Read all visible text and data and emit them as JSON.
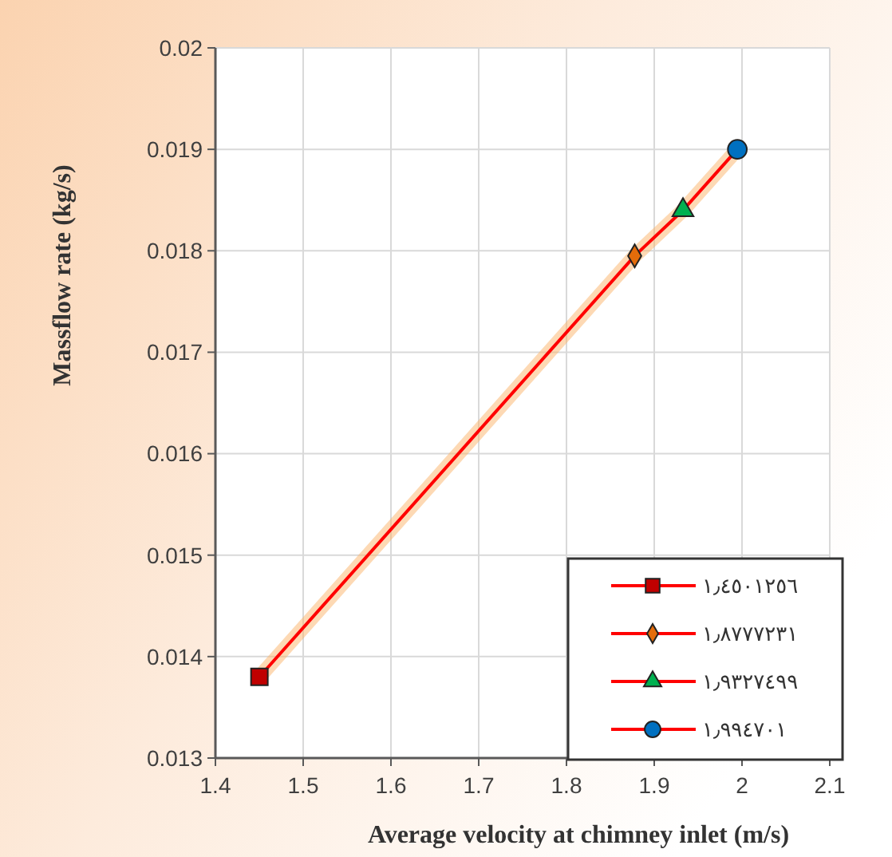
{
  "chart_data": {
    "type": "scatter",
    "xlabel": "Average velocity at chimney inlet  (m/s)",
    "ylabel": "Massflow rate  (kg/s)",
    "xlim": [
      1.4,
      2.1
    ],
    "xticks": [
      1.4,
      1.5,
      1.6,
      1.7,
      1.8,
      1.9,
      2,
      2.1
    ],
    "ylim": [
      0.013,
      0.02
    ],
    "yticks": [
      0.013,
      0.014,
      0.015,
      0.016,
      0.017,
      0.018,
      0.019,
      0.02
    ],
    "grid": true,
    "legend": "bottom right",
    "series": [
      {
        "type": "line",
        "color": "#ff0000",
        "x": [
          1.4501256,
          1.8777231,
          1.9327499,
          1.994701
        ],
        "values": [
          0.0138,
          0.01795,
          0.0184,
          0.019
        ]
      },
      {
        "name": "١٫٤٥٠١٢٥٦",
        "color": "#c00000",
        "marker": "square",
        "x": [
          1.4501256
        ],
        "values": [
          0.0138
        ]
      },
      {
        "name": "١٫٨٧٧٧٢٣١",
        "color": "#e46c0a",
        "marker": "diamond",
        "x": [
          1.8777231
        ],
        "values": [
          0.01795
        ]
      },
      {
        "name": "١٫٩٣٢٧٤٩٩",
        "color": "#00b050",
        "marker": "triangle",
        "x": [
          1.9327499
        ],
        "values": [
          0.0184
        ]
      },
      {
        "name": "١٫٩٩٤٧٠١",
        "color": "#0070c0",
        "marker": "circle",
        "x": [
          1.994701
        ],
        "values": [
          0.019
        ]
      }
    ]
  }
}
